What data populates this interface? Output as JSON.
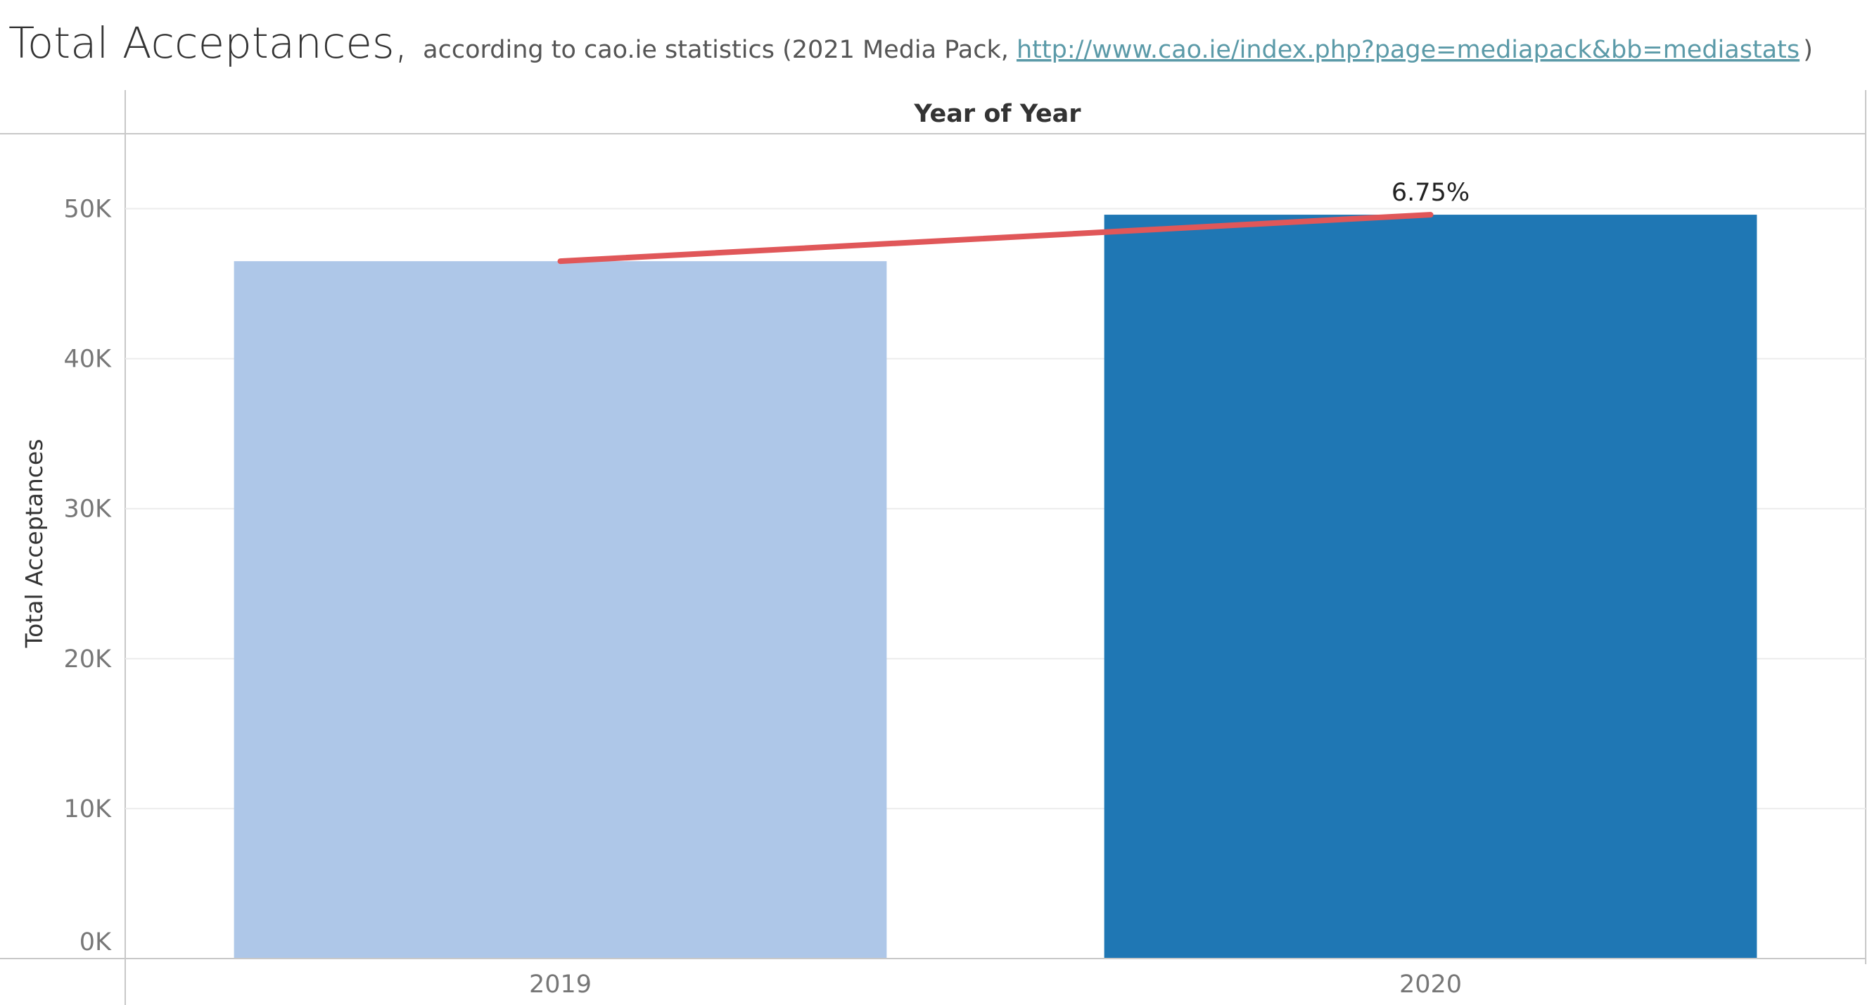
{
  "header": {
    "title_main": "Total Acceptances,",
    "title_sub_prefix": "according to cao.ie statistics (2021 Media Pack, ",
    "title_link": "http://www.cao.ie/index.php?page=mediapack&bb=mediastats",
    "title_sub_suffix": ")"
  },
  "chart_data": {
    "type": "bar",
    "title": "Total Acceptances,",
    "subtitle": "according to cao.ie statistics (2021 Media Pack, http://www.cao.ie/index.php?page=mediapack&bb=mediastats)",
    "column_header": "Year of Year",
    "xlabel": "",
    "ylabel": "Total Acceptances",
    "categories": [
      "2019",
      "2020"
    ],
    "values": [
      46500,
      49600
    ],
    "bar_colors": [
      "#aec7e8",
      "#1f77b4"
    ],
    "ylim": [
      0,
      55000
    ],
    "yticks": [
      0,
      10000,
      20000,
      30000,
      40000,
      50000
    ],
    "ytick_labels": [
      "0K",
      "10K",
      "20K",
      "30K",
      "40K",
      "50K"
    ],
    "trend_line": {
      "color": "#e05759",
      "points": [
        46500,
        49600
      ]
    },
    "annotations": [
      {
        "category": "2020",
        "text": "6.75%"
      }
    ],
    "grid": true,
    "legend": "none"
  }
}
